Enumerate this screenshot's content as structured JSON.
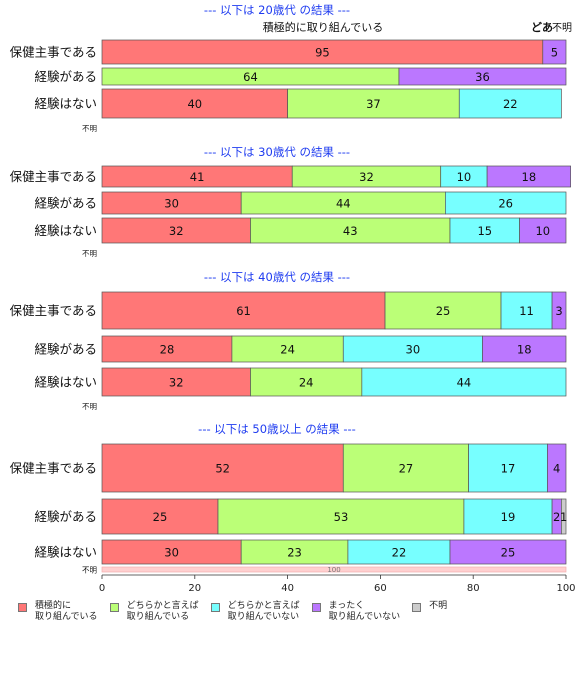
{
  "chart_data": {
    "type": "bar",
    "orientation": "horizontal",
    "stacked": true,
    "xlim": [
      0,
      100
    ],
    "x_ticks": [
      "0",
      "20",
      "40",
      "60",
      "80",
      "100"
    ],
    "legend_position": "bottom",
    "series": [
      {
        "name": "積極的に\n取り組んでいる",
        "color": "#ff7777"
      },
      {
        "name": "どちらかと言えば\n取り組んでいる",
        "color": "#bbff77"
      },
      {
        "name": "どちらかと言えば\n取り組んでいない",
        "color": "#77ffff"
      },
      {
        "name": "まったく\n取り組んでいない",
        "color": "#bb77ff"
      },
      {
        "name": "不明",
        "color": "#cccccc"
      }
    ],
    "panels": [
      {
        "title": "--- 以下は 20歳代 の結果 ---",
        "annotation": "積極的に取り組んでいる",
        "overflow_labels": [
          "どあ",
          "不明"
        ],
        "rows": [
          {
            "label": "保健主事である",
            "values": [
              95,
              0,
              0,
              5,
              0
            ]
          },
          {
            "label": "経験がある",
            "values": [
              0,
              64,
              0,
              36,
              0
            ]
          },
          {
            "label": "経験はない",
            "values": [
              40,
              37,
              22,
              0,
              0
            ]
          },
          {
            "label": "不明",
            "values": [
              0,
              0,
              0,
              0,
              0
            ]
          }
        ]
      },
      {
        "title": "--- 以下は 30歳代 の結果 ---",
        "rows": [
          {
            "label": "保健主事である",
            "values": [
              41,
              32,
              10,
              18,
              0
            ]
          },
          {
            "label": "経験がある",
            "values": [
              30,
              44,
              26,
              0,
              0
            ]
          },
          {
            "label": "経験はない",
            "values": [
              32,
              43,
              15,
              10,
              0
            ]
          },
          {
            "label": "不明",
            "values": [
              0,
              0,
              0,
              0,
              0
            ]
          }
        ]
      },
      {
        "title": "--- 以下は 40歳代 の結果 ---",
        "rows": [
          {
            "label": "保健主事である",
            "values": [
              61,
              25,
              11,
              3,
              0
            ]
          },
          {
            "label": "経験がある",
            "values": [
              28,
              24,
              30,
              18,
              0
            ]
          },
          {
            "label": "経験はない",
            "values": [
              32,
              24,
              44,
              0,
              0
            ]
          },
          {
            "label": "不明",
            "values": [
              0,
              0,
              0,
              0,
              0
            ]
          }
        ]
      },
      {
        "title": "--- 以下は 50歳以上 の結果 ---",
        "rows": [
          {
            "label": "保健主事である",
            "values": [
              52,
              27,
              17,
              4,
              0
            ]
          },
          {
            "label": "経験がある",
            "values": [
              25,
              53,
              19,
              2,
              1
            ]
          },
          {
            "label": "経験はない",
            "values": [
              30,
              23,
              22,
              25,
              0
            ]
          },
          {
            "label": "不明",
            "values": [
              100,
              0,
              0,
              0,
              0
            ],
            "faded": true
          }
        ]
      }
    ]
  }
}
